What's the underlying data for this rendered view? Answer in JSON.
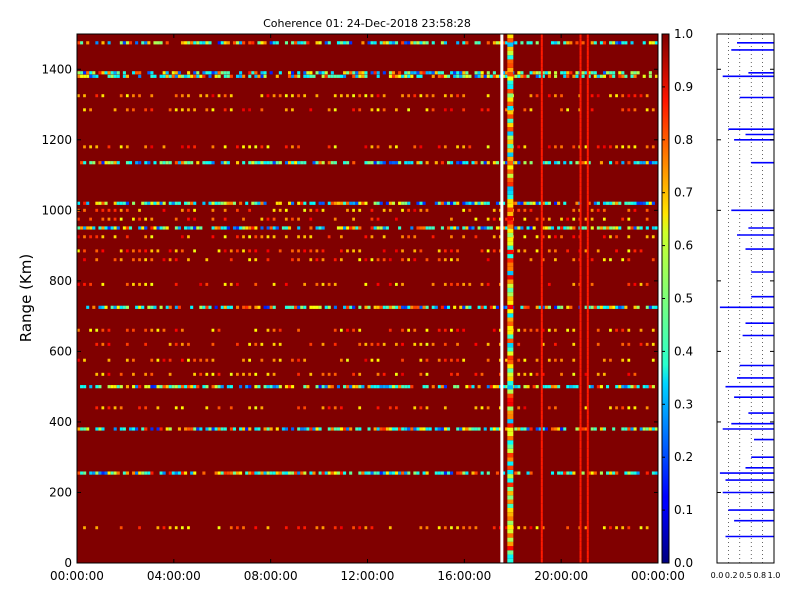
{
  "chart_data": [
    {
      "type": "heatmap",
      "title": "Coherence 01: 24-Dec-2018 23:58:28",
      "xlabel": "",
      "ylabel": "Range (Km)",
      "x_ticks": [
        "00:00:00",
        "04:00:00",
        "08:00:00",
        "12:00:00",
        "16:00:00",
        "20:00:00",
        "00:00:00"
      ],
      "xlim_hours": [
        0,
        24
      ],
      "ylim": [
        0,
        1500
      ],
      "y_ticks": [
        0,
        200,
        400,
        600,
        800,
        1000,
        1200,
        1400
      ],
      "colorbar": {
        "colormap": "jet",
        "range": [
          0.0,
          1.0
        ],
        "ticks": [
          "0.0",
          "0.1",
          "0.2",
          "0.3",
          "0.4",
          "0.5",
          "0.6",
          "0.7",
          "0.8",
          "0.9",
          "1.0"
        ]
      },
      "background_value": 1.0,
      "background_color": "#800000",
      "low_coherence_rows_km": [
        1475,
        1390,
        1380,
        1135,
        1020,
        950,
        725,
        500,
        380,
        255
      ],
      "dotted_rows_km": [
        1325,
        1285,
        1180,
        1000,
        975,
        925,
        885,
        860,
        790,
        660,
        620,
        575,
        535,
        440,
        100
      ],
      "gap_column_hours": 17.55,
      "active_columns_hours": [
        17.9,
        19.2,
        20.8,
        21.1
      ]
    },
    {
      "type": "line",
      "xlim": [
        0.0,
        1.0
      ],
      "x_ticks": [
        "0.0",
        "0.2",
        "0.5",
        "0.8",
        "1.0"
      ],
      "ylim": [
        0,
        1500
      ],
      "grid": "vertical-dotted",
      "color": "#0000ff",
      "profile": [
        {
          "range": 1475,
          "min": 0.35
        },
        {
          "range": 1455,
          "min": 0.25
        },
        {
          "range": 1390,
          "min": 0.55
        },
        {
          "range": 1380,
          "min": 0.1
        },
        {
          "range": 1320,
          "min": 0.4
        },
        {
          "range": 1230,
          "min": 0.2
        },
        {
          "range": 1215,
          "min": 0.5
        },
        {
          "range": 1200,
          "min": 0.3
        },
        {
          "range": 1135,
          "min": 0.6
        },
        {
          "range": 1000,
          "min": 0.25
        },
        {
          "range": 950,
          "min": 0.55
        },
        {
          "range": 930,
          "min": 0.35
        },
        {
          "range": 890,
          "min": 0.5
        },
        {
          "range": 825,
          "min": 0.6
        },
        {
          "range": 755,
          "min": 0.6
        },
        {
          "range": 725,
          "min": 0.05
        },
        {
          "range": 680,
          "min": 0.5
        },
        {
          "range": 645,
          "min": 0.45
        },
        {
          "range": 560,
          "min": 0.4
        },
        {
          "range": 525,
          "min": 0.35
        },
        {
          "range": 500,
          "min": 0.15
        },
        {
          "range": 470,
          "min": 0.3
        },
        {
          "range": 425,
          "min": 0.55
        },
        {
          "range": 395,
          "min": 0.25
        },
        {
          "range": 380,
          "min": 0.1
        },
        {
          "range": 350,
          "min": 0.65
        },
        {
          "range": 300,
          "min": 0.6
        },
        {
          "range": 270,
          "min": 0.5
        },
        {
          "range": 255,
          "min": 0.05
        },
        {
          "range": 235,
          "min": 0.15
        },
        {
          "range": 200,
          "min": 0.1
        },
        {
          "range": 150,
          "min": 0.2
        },
        {
          "range": 120,
          "min": 0.3
        },
        {
          "range": 75,
          "min": 0.15
        }
      ]
    }
  ]
}
